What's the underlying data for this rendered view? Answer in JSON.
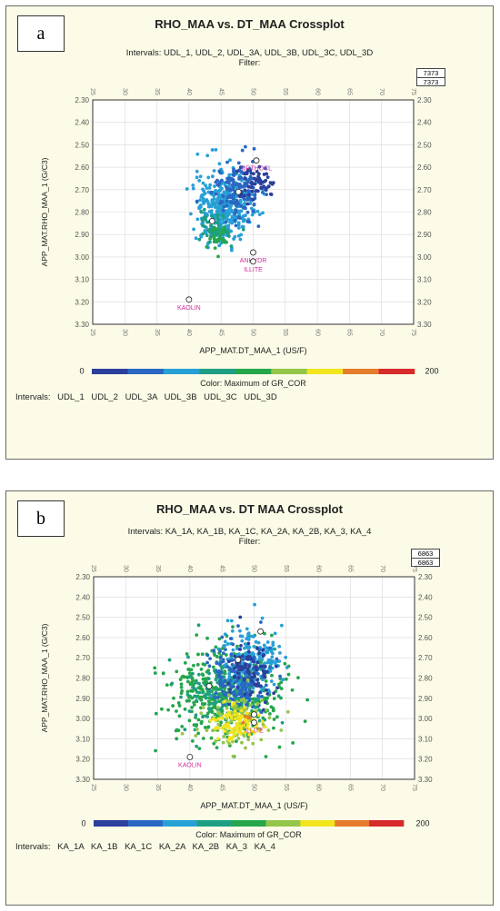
{
  "panels": [
    {
      "letter": "a",
      "title": "RHO_MAA vs. DT_MAA Crossplot",
      "intervals_line": "Intervals: UDL_1, UDL_2, UDL_3A, UDL_3B, UDL_3C, UDL_3D",
      "filter": "Filter:",
      "count": [
        "7373",
        "7373"
      ],
      "colorbar_min": "0",
      "colorbar_max": "200",
      "colorbar_label": "Color: Maximum of GR_COR",
      "intervals_bottom": "Intervals:  UDL_1  UDL_2  UDL_3A  UDL_3B  UDL_3C  UDL_3D"
    },
    {
      "letter": "b",
      "title": "RHO_MAA vs. DT  MAA Crossplot",
      "intervals_line": "Intervals: KA_1A, KA_1B, KA_1C, KA_2A, KA_2B, KA_3, KA_4",
      "filter": "Filter:",
      "count": [
        "6863",
        "6863"
      ],
      "colorbar_min": "0",
      "colorbar_max": "200",
      "colorbar_label": "Color: Maximum of GR_COR",
      "intervals_bottom": "Intervals:  KA_1A  KA_1B  KA_1C  KA_2A  KA_2B  KA_3  KA_4"
    }
  ],
  "colorbar_colors": [
    "#2b3f9c",
    "#2a67c2",
    "#27a0d6",
    "#1e9e83",
    "#25a64b",
    "#93c64a",
    "#f2e51e",
    "#e47c2b",
    "#d62a2b"
  ],
  "chart_data": [
    {
      "type": "scatter",
      "title": "RHO_MAA vs. DT_MAA Crossplot",
      "xlabel": "APP_MAT.DT_MAA_1 (US/F)",
      "ylabel": "APP_MAT.RHO_MAA_1 (G/C3)",
      "xlim": [
        25,
        75
      ],
      "ylim": [
        3.3,
        2.3
      ],
      "y_reversed": true,
      "xticks": [
        "25",
        "30",
        "35",
        "40",
        "45",
        "50",
        "55",
        "60",
        "65",
        "70",
        "75"
      ],
      "yticks": [
        "2.30",
        "2.40",
        "2.50",
        "2.60",
        "2.70",
        "2.80",
        "2.90",
        "3.00",
        "3.10",
        "3.20",
        "3.30"
      ],
      "grid": true,
      "minerals": [
        {
          "name": "ORTHOCL",
          "x": 50.5,
          "y": 2.57
        },
        {
          "name": "",
          "x": 47.7,
          "y": 2.71
        },
        {
          "name": "",
          "x": 43.6,
          "y": 2.84
        },
        {
          "name": "ANHYDR",
          "x": 50.0,
          "y": 2.98
        },
        {
          "name": "ILLITE",
          "x": 50.0,
          "y": 3.02
        },
        {
          "name": "KAOLIN",
          "x": 40.0,
          "y": 3.19
        }
      ],
      "clusters": [
        {
          "color": "#27a0d6",
          "cx": 45.5,
          "cy": 2.77,
          "sx": 2.2,
          "sy": 0.08,
          "n": 380
        },
        {
          "color": "#2a67c2",
          "cx": 47.5,
          "cy": 2.71,
          "sx": 1.8,
          "sy": 0.06,
          "n": 160
        },
        {
          "color": "#2b3f9c",
          "cx": 50.5,
          "cy": 2.68,
          "sx": 1.2,
          "sy": 0.04,
          "n": 60
        },
        {
          "color": "#1e9e83",
          "cx": 44.0,
          "cy": 2.88,
          "sx": 1.4,
          "sy": 0.04,
          "n": 60
        },
        {
          "color": "#25a64b",
          "cx": 44.5,
          "cy": 2.91,
          "sx": 1.0,
          "sy": 0.03,
          "n": 25
        }
      ]
    },
    {
      "type": "scatter",
      "title": "RHO_MAA vs. DT  MAA Crossplot",
      "xlabel": "APP_MAT.DT_MAA_1 (US/F)",
      "ylabel": "APP_MAT.RHO_MAA_1 (G/C3)",
      "xlim": [
        25,
        75
      ],
      "ylim": [
        3.3,
        2.3
      ],
      "y_reversed": true,
      "xticks": [
        "25",
        "30",
        "35",
        "40",
        "45",
        "50",
        "55",
        "60",
        "65",
        "70",
        "75"
      ],
      "yticks": [
        "2.30",
        "2.40",
        "2.50",
        "2.60",
        "2.70",
        "2.80",
        "2.90",
        "3.00",
        "3.10",
        "3.20",
        "3.30"
      ],
      "grid": true,
      "minerals": [
        {
          "name": "",
          "x": 51.0,
          "y": 2.57
        },
        {
          "name": "",
          "x": 47.5,
          "y": 2.71
        },
        {
          "name": "",
          "x": 43.0,
          "y": 2.84
        },
        {
          "name": "",
          "x": 50.0,
          "y": 2.98
        },
        {
          "name": "ILLITE",
          "x": 50.0,
          "y": 3.02
        },
        {
          "name": "KAOLIN",
          "x": 40.0,
          "y": 3.19
        }
      ],
      "clusters": [
        {
          "color": "#25a64b",
          "cx": 45.0,
          "cy": 2.88,
          "sx": 4.5,
          "sy": 0.12,
          "n": 420
        },
        {
          "color": "#1e9e83",
          "cx": 46.0,
          "cy": 2.85,
          "sx": 3.5,
          "sy": 0.1,
          "n": 180
        },
        {
          "color": "#27a0d6",
          "cx": 49.5,
          "cy": 2.72,
          "sx": 2.5,
          "sy": 0.08,
          "n": 200
        },
        {
          "color": "#2a67c2",
          "cx": 47.5,
          "cy": 2.8,
          "sx": 2.2,
          "sy": 0.09,
          "n": 160
        },
        {
          "color": "#2b3f9c",
          "cx": 50.0,
          "cy": 2.76,
          "sx": 2.0,
          "sy": 0.08,
          "n": 90
        },
        {
          "color": "#93c64a",
          "cx": 47.5,
          "cy": 3.0,
          "sx": 2.5,
          "sy": 0.06,
          "n": 110
        },
        {
          "color": "#f2e51e",
          "cx": 47.0,
          "cy": 3.03,
          "sx": 2.0,
          "sy": 0.04,
          "n": 90
        },
        {
          "color": "#e47c2b",
          "cx": 49.0,
          "cy": 3.0,
          "sx": 0.8,
          "sy": 0.02,
          "n": 6
        }
      ]
    }
  ]
}
